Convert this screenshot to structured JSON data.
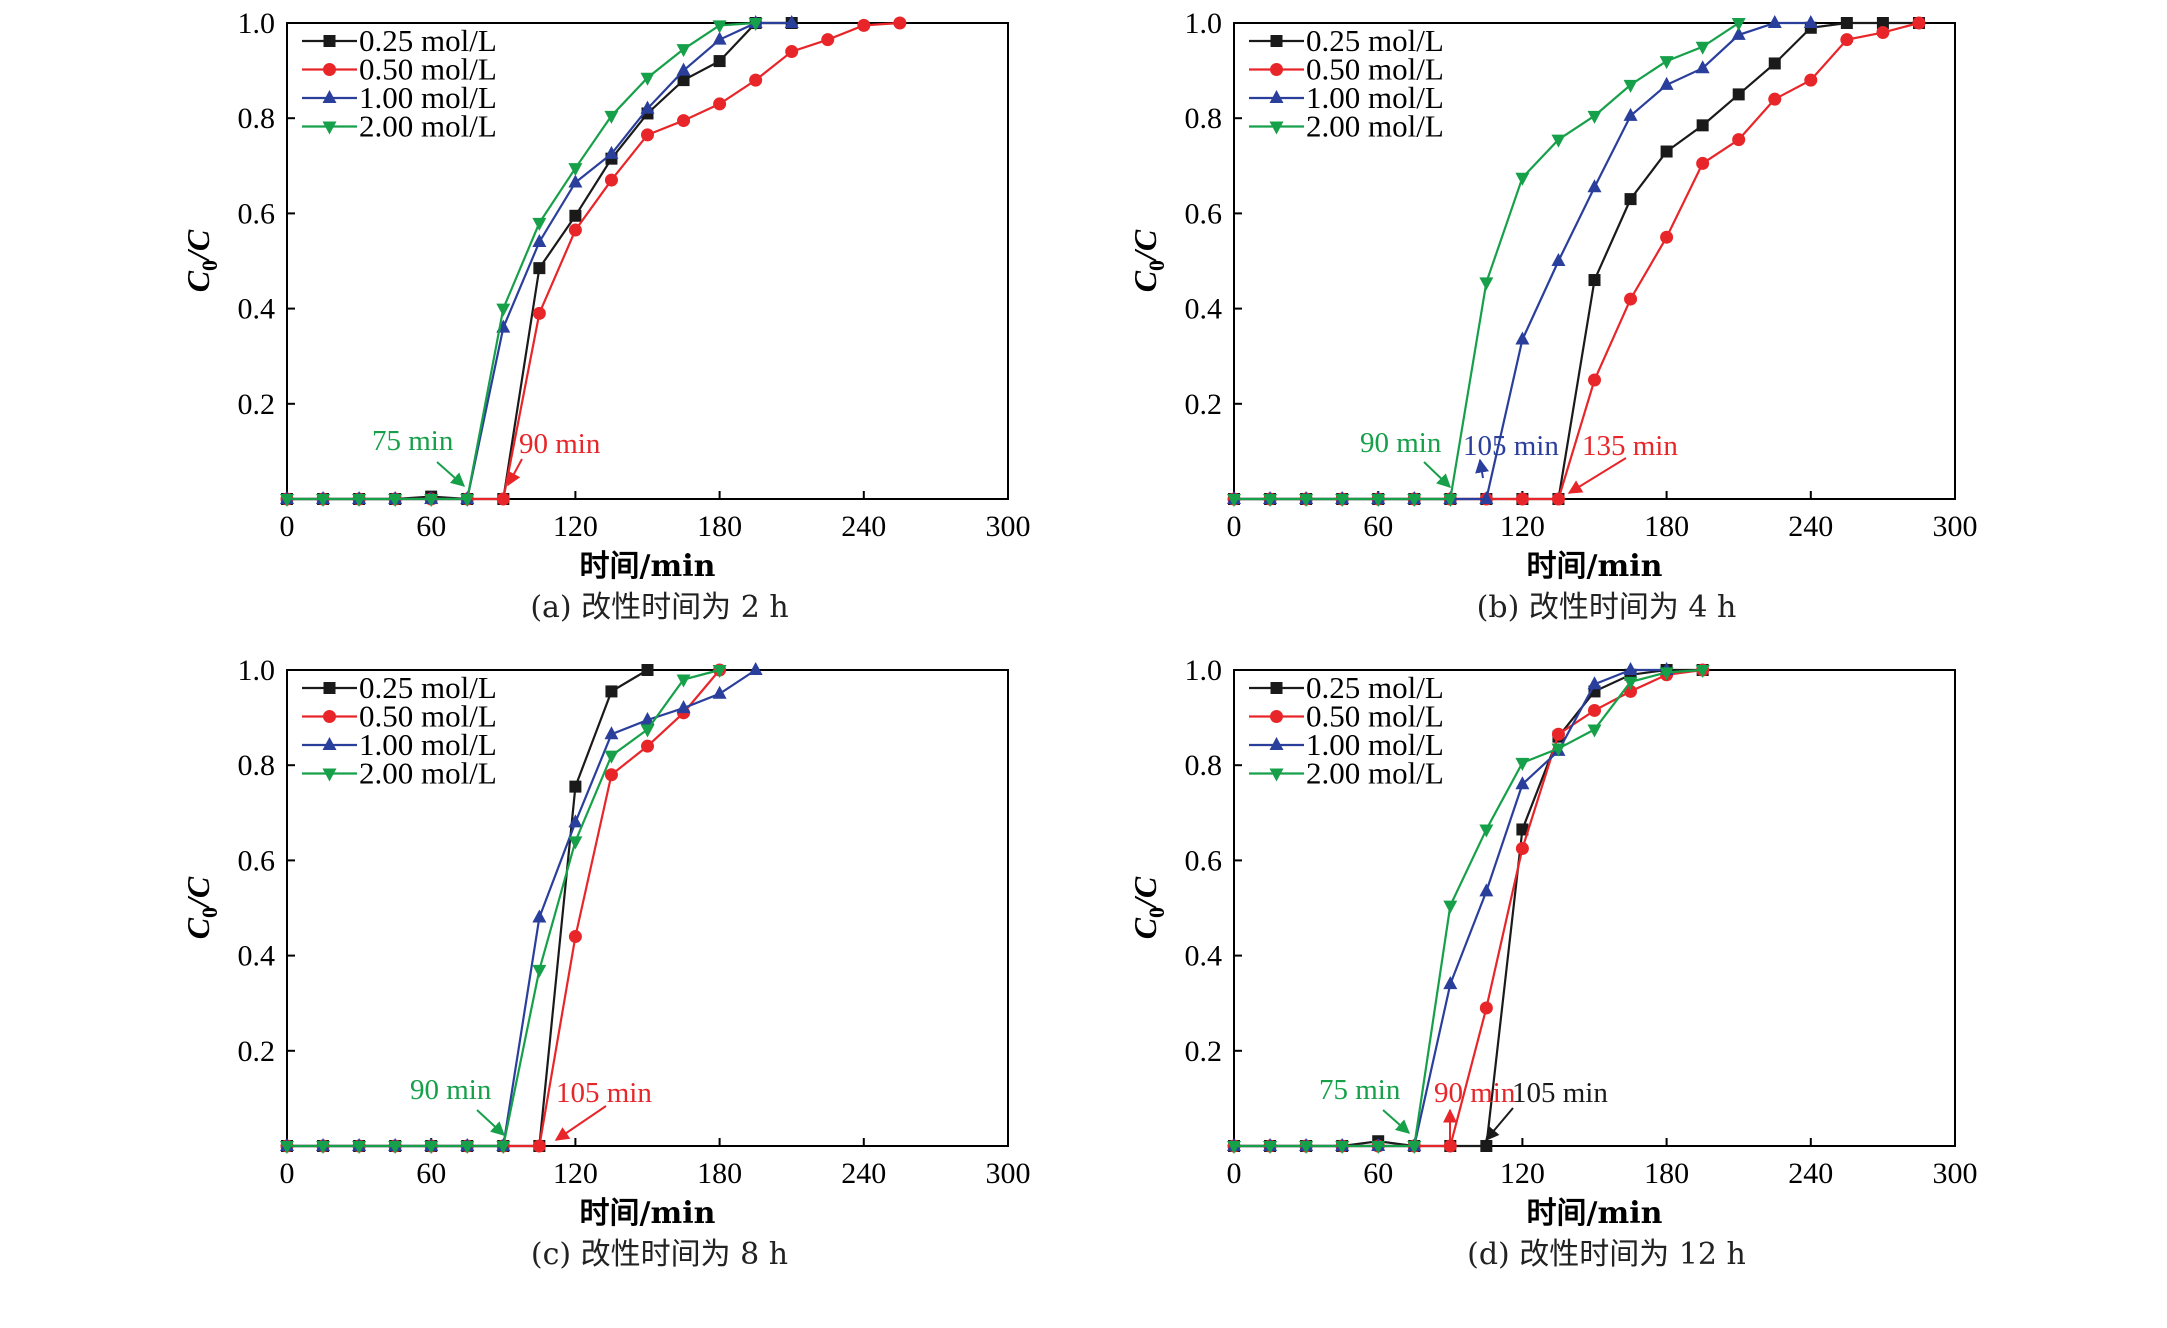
{
  "colors": {
    "0.25 mol/L": "#1a1a1a",
    "0.50 mol/L": "#e8262a",
    "1.00 mol/L": "#2a3f9c",
    "2.00 mol/L": "#17a04a"
  },
  "markers": {
    "0.25 mol/L": "square",
    "0.50 mol/L": "circle",
    "1.00 mol/L": "triangle-up",
    "2.00 mol/L": "triangle-down"
  },
  "chart_data": [
    {
      "type": "line",
      "caption": "(a) 改性时间为 2 h",
      "xlabel": "时间/min",
      "ylabel_main": "C",
      "ylabel_sub": "0",
      "ylabel_tail": "/C",
      "xlim": [
        0,
        300
      ],
      "ylim": [
        0,
        1.0
      ],
      "xticks": [
        "0",
        "60",
        "120",
        "180",
        "240",
        "300"
      ],
      "yticks": [
        "0.2",
        "0.4",
        "0.6",
        "0.8",
        "1.0"
      ],
      "legend_placement": "top-left",
      "series": [
        {
          "name": "0.25 mol/L",
          "x": [
            0,
            15,
            30,
            45,
            60,
            75,
            90,
            105,
            120,
            135,
            150,
            165,
            180,
            195,
            210
          ],
          "y": [
            0,
            0,
            0,
            0,
            0.005,
            0,
            0,
            0.485,
            0.595,
            0.715,
            0.81,
            0.88,
            0.92,
            1.0,
            1.0
          ]
        },
        {
          "name": "0.50 mol/L",
          "x": [
            0,
            15,
            30,
            45,
            60,
            75,
            90,
            105,
            120,
            135,
            150,
            165,
            180,
            195,
            210,
            225,
            240,
            255
          ],
          "y": [
            0,
            0,
            0,
            0,
            0,
            0,
            0,
            0.39,
            0.565,
            0.67,
            0.765,
            0.795,
            0.83,
            0.88,
            0.94,
            0.965,
            0.995,
            1.0
          ]
        },
        {
          "name": "1.00 mol/L",
          "x": [
            0,
            15,
            30,
            45,
            60,
            75,
            90,
            105,
            120,
            135,
            150,
            165,
            180,
            195,
            210
          ],
          "y": [
            0,
            0,
            0,
            0,
            0,
            0,
            0.36,
            0.54,
            0.665,
            0.725,
            0.82,
            0.9,
            0.965,
            1.0,
            1.0
          ]
        },
        {
          "name": "2.00 mol/L",
          "x": [
            0,
            15,
            30,
            45,
            60,
            75,
            90,
            105,
            120,
            135,
            150,
            165,
            180,
            195
          ],
          "y": [
            0,
            0,
            0,
            0,
            0,
            0,
            0.4,
            0.58,
            0.695,
            0.805,
            0.885,
            0.945,
            0.995,
            1.0
          ]
        }
      ],
      "annotations": [
        {
          "text": "75 min",
          "color": "green",
          "x": 75
        },
        {
          "text": "90 min",
          "color": "red",
          "x": 90
        }
      ]
    },
    {
      "type": "line",
      "caption": "(b) 改性时间为 4 h",
      "xlabel": "时间/min",
      "ylabel_main": "C",
      "ylabel_sub": "0",
      "ylabel_tail": "/C",
      "xlim": [
        0,
        300
      ],
      "ylim": [
        0,
        1.0
      ],
      "xticks": [
        "0",
        "60",
        "120",
        "180",
        "240",
        "300"
      ],
      "yticks": [
        "0.2",
        "0.4",
        "0.6",
        "0.8",
        "1.0"
      ],
      "legend_placement": "top-left",
      "series": [
        {
          "name": "0.25 mol/L",
          "x": [
            0,
            15,
            30,
            45,
            60,
            75,
            90,
            105,
            120,
            135,
            150,
            165,
            180,
            195,
            210,
            225,
            240,
            255,
            270,
            285
          ],
          "y": [
            0,
            0,
            0,
            0,
            0,
            0,
            0,
            0,
            0,
            0,
            0.46,
            0.63,
            0.73,
            0.785,
            0.85,
            0.915,
            0.99,
            1.0,
            1.0,
            1.0
          ]
        },
        {
          "name": "0.50 mol/L",
          "x": [
            0,
            15,
            30,
            45,
            60,
            75,
            90,
            105,
            120,
            135,
            150,
            165,
            180,
            195,
            210,
            225,
            240,
            255,
            270,
            285
          ],
          "y": [
            0,
            0,
            0,
            0,
            0,
            0,
            0,
            0,
            0,
            0,
            0.25,
            0.42,
            0.55,
            0.705,
            0.755,
            0.84,
            0.88,
            0.965,
            0.98,
            1.0
          ]
        },
        {
          "name": "1.00 mol/L",
          "x": [
            0,
            15,
            30,
            45,
            60,
            75,
            90,
            105,
            120,
            135,
            150,
            165,
            180,
            195,
            210,
            225,
            240
          ],
          "y": [
            0,
            0,
            0,
            0,
            0,
            0,
            0,
            0,
            0.335,
            0.5,
            0.655,
            0.805,
            0.87,
            0.905,
            0.975,
            1.0,
            1.0
          ]
        },
        {
          "name": "2.00 mol/L",
          "x": [
            0,
            15,
            30,
            45,
            60,
            75,
            90,
            105,
            120,
            135,
            150,
            165,
            180,
            195,
            210
          ],
          "y": [
            0,
            0,
            0,
            0,
            0,
            0,
            0,
            0.455,
            0.675,
            0.755,
            0.805,
            0.87,
            0.92,
            0.95,
            1.0
          ]
        }
      ],
      "annotations": [
        {
          "text": "90 min",
          "color": "green",
          "x": 90
        },
        {
          "text": "105 min",
          "color": "blue",
          "x": 105
        },
        {
          "text": "135 min",
          "color": "red",
          "x": 135
        }
      ]
    },
    {
      "type": "line",
      "caption": "(c) 改性时间为 8 h",
      "xlabel": "时间/min",
      "ylabel_main": "C",
      "ylabel_sub": "0",
      "ylabel_tail": "/C",
      "xlim": [
        0,
        300
      ],
      "ylim": [
        0,
        1.0
      ],
      "xticks": [
        "0",
        "60",
        "120",
        "180",
        "240",
        "300"
      ],
      "yticks": [
        "0.2",
        "0.4",
        "0.6",
        "0.8",
        "1.0"
      ],
      "legend_placement": "top-left",
      "series": [
        {
          "name": "0.25 mol/L",
          "x": [
            0,
            15,
            30,
            45,
            60,
            75,
            90,
            105,
            120,
            135,
            150
          ],
          "y": [
            0,
            0,
            0,
            0,
            0,
            0,
            0,
            0,
            0.755,
            0.955,
            1.0
          ]
        },
        {
          "name": "0.50 mol/L",
          "x": [
            0,
            15,
            30,
            45,
            60,
            75,
            90,
            105,
            120,
            135,
            150,
            165,
            180
          ],
          "y": [
            0,
            0,
            0,
            0,
            0,
            0,
            0,
            0,
            0.44,
            0.78,
            0.84,
            0.91,
            1.0
          ]
        },
        {
          "name": "1.00 mol/L",
          "x": [
            0,
            15,
            30,
            45,
            60,
            75,
            90,
            105,
            120,
            135,
            150,
            165,
            180,
            195
          ],
          "y": [
            0,
            0,
            0,
            0,
            0,
            0,
            0,
            0.48,
            0.68,
            0.865,
            0.895,
            0.92,
            0.95,
            1.0
          ]
        },
        {
          "name": "2.00 mol/L",
          "x": [
            0,
            15,
            30,
            45,
            60,
            75,
            90,
            105,
            120,
            135,
            150,
            165,
            180
          ],
          "y": [
            0,
            0,
            0,
            0,
            0,
            0,
            0,
            0.37,
            0.64,
            0.82,
            0.875,
            0.98,
            1.0
          ]
        }
      ],
      "annotations": [
        {
          "text": "90 min",
          "color": "green",
          "x": 90
        },
        {
          "text": "105 min",
          "color": "red",
          "x": 105
        }
      ]
    },
    {
      "type": "line",
      "caption": "(d) 改性时间为 12 h",
      "xlabel": "时间/min",
      "ylabel_main": "C",
      "ylabel_sub": "0",
      "ylabel_tail": "/C",
      "xlim": [
        0,
        300
      ],
      "ylim": [
        0,
        1.0
      ],
      "xticks": [
        "0",
        "60",
        "120",
        "180",
        "240",
        "300"
      ],
      "yticks": [
        "0.2",
        "0.4",
        "0.6",
        "0.8",
        "1.0"
      ],
      "legend_placement": "top-left",
      "series": [
        {
          "name": "0.25 mol/L",
          "x": [
            0,
            15,
            30,
            45,
            60,
            75,
            90,
            105,
            120,
            135,
            150,
            165,
            180,
            195
          ],
          "y": [
            0,
            0,
            0,
            0,
            0.01,
            0,
            0,
            0,
            0.665,
            0.86,
            0.955,
            0.99,
            1.0,
            1.0
          ]
        },
        {
          "name": "0.50 mol/L",
          "x": [
            0,
            15,
            30,
            45,
            60,
            75,
            90,
            105,
            120,
            135,
            150,
            165,
            180,
            195
          ],
          "y": [
            0,
            0,
            0,
            0,
            0,
            0,
            0,
            0.29,
            0.625,
            0.865,
            0.915,
            0.955,
            0.99,
            1.0
          ]
        },
        {
          "name": "1.00 mol/L",
          "x": [
            0,
            15,
            30,
            45,
            60,
            75,
            90,
            105,
            120,
            135,
            150,
            165,
            180
          ],
          "y": [
            0,
            0,
            0,
            0,
            0,
            0,
            0.34,
            0.535,
            0.76,
            0.83,
            0.97,
            1.0,
            1.0
          ]
        },
        {
          "name": "2.00 mol/L",
          "x": [
            0,
            15,
            30,
            45,
            60,
            75,
            90,
            105,
            120,
            135,
            150,
            165,
            180,
            195
          ],
          "y": [
            0,
            0,
            0,
            0,
            0,
            0,
            0.505,
            0.665,
            0.805,
            0.835,
            0.875,
            0.975,
            0.995,
            1.0
          ]
        }
      ],
      "annotations": [
        {
          "text": "75 min",
          "color": "green",
          "x": 75
        },
        {
          "text": "90 min",
          "color": "red",
          "x": 90
        },
        {
          "text": "105 min",
          "color": "black",
          "x": 105
        }
      ]
    }
  ]
}
